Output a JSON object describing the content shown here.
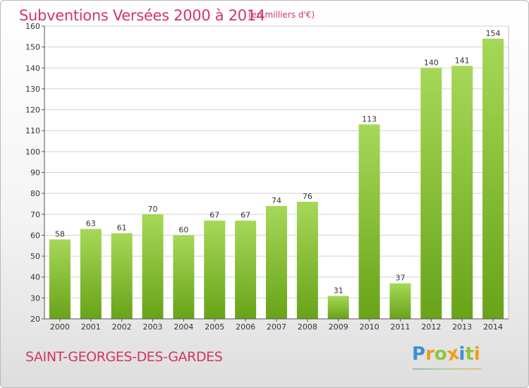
{
  "header": {
    "title": "Subventions Versées 2000 à 2014",
    "subtitle": "(en milliers d'€)"
  },
  "footer": {
    "commune": "SAINT-GEORGES-DES-GARDES",
    "logo_letters": [
      "P",
      "r",
      "o",
      "x",
      "i",
      "t",
      "i"
    ],
    "logo_colors": [
      "#3d8fd6",
      "#f29b1d",
      "#8cc63f",
      "#f29b1d",
      "#3d8fd6",
      "#8cc63f",
      "#f29b1d"
    ]
  },
  "chart_data": {
    "type": "bar",
    "title": "Subventions Versées 2000 à 2014",
    "subtitle": "(en milliers d'€)",
    "categories": [
      "2000",
      "2001",
      "2002",
      "2003",
      "2004",
      "2005",
      "2006",
      "2007",
      "2008",
      "2009",
      "2010",
      "2011",
      "2012",
      "2013",
      "2014"
    ],
    "values": [
      58,
      63,
      61,
      70,
      60,
      67,
      67,
      74,
      76,
      31,
      113,
      37,
      140,
      141,
      154
    ],
    "ylim": [
      20,
      160
    ],
    "yticks": [
      20,
      30,
      40,
      50,
      60,
      70,
      80,
      90,
      100,
      110,
      120,
      130,
      140,
      150,
      160
    ],
    "grid": true,
    "xlabel": "",
    "ylabel": "",
    "colors": {
      "bar_light": "#a6d858",
      "bar_dark": "#68a318",
      "grid": "#d2d2d2",
      "axis": "#333333"
    }
  }
}
